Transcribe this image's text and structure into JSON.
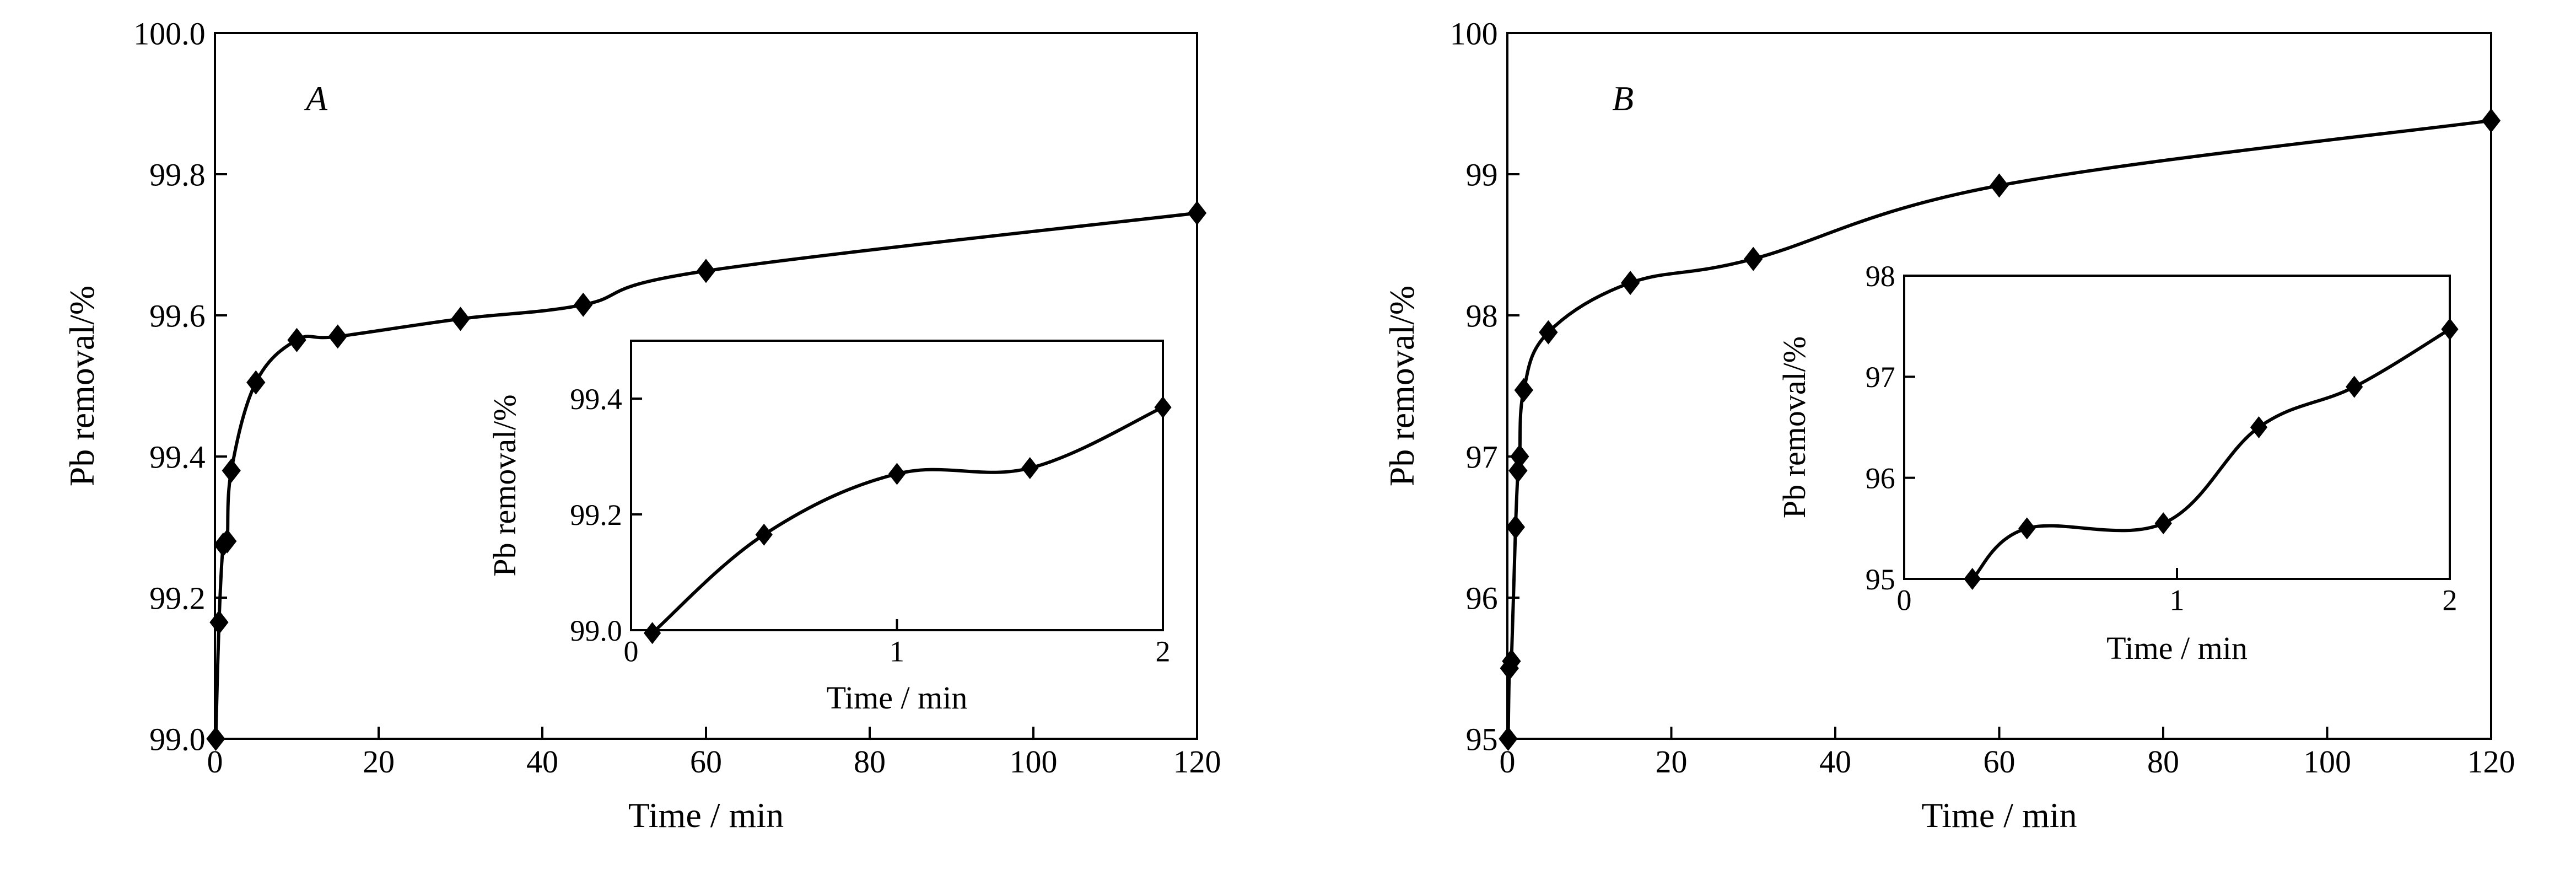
{
  "colors": {
    "line": "#000000",
    "marker": "#000000",
    "background": "#ffffff"
  },
  "chart_data": [
    {
      "panel_label": "A",
      "type": "line",
      "xlabel": "Time / min",
      "ylabel": "Pb removal/%",
      "xlim": [
        0,
        120
      ],
      "ylim": [
        99.0,
        100.0
      ],
      "xticks": [
        0,
        20,
        40,
        60,
        80,
        100,
        120
      ],
      "yticks": [
        99.0,
        99.2,
        99.4,
        99.6,
        99.8,
        100.0
      ],
      "xtick_labels": [
        "0",
        "20",
        "40",
        "60",
        "80",
        "100",
        "120"
      ],
      "ytick_labels": [
        "99.0",
        "99.2",
        "99.4",
        "99.6",
        "99.8",
        "100.0"
      ],
      "grid": false,
      "marker": "diamond",
      "series": [
        {
          "x": [
            0.1,
            0.5,
            1,
            1.5,
            2,
            5,
            10,
            15,
            30,
            45,
            60,
            120
          ],
          "y": [
            99.0,
            99.165,
            99.275,
            99.28,
            99.38,
            99.505,
            99.565,
            99.57,
            99.595,
            99.615,
            99.663,
            99.745
          ]
        }
      ]
    },
    {
      "inset_of": "A",
      "type": "line",
      "xlabel": "Time / min",
      "ylabel": "Pb removal/%",
      "xlim": [
        0,
        2
      ],
      "ylim": [
        99.0,
        99.5
      ],
      "xticks": [
        0,
        1,
        2
      ],
      "yticks": [
        99.0,
        99.2,
        99.4
      ],
      "xtick_labels": [
        "0",
        "1",
        "2"
      ],
      "ytick_labels": [
        "99.0",
        "99.2",
        "99.4"
      ],
      "grid": false,
      "marker": "diamond",
      "series": [
        {
          "x": [
            0.08,
            0.5,
            1.0,
            1.5,
            2.0
          ],
          "y": [
            98.995,
            99.165,
            99.27,
            99.28,
            99.385
          ]
        }
      ]
    },
    {
      "panel_label": "B",
      "type": "line",
      "xlabel": "Time / min",
      "ylabel": "Pb removal/%",
      "xlim": [
        0,
        120
      ],
      "ylim": [
        95,
        100
      ],
      "xticks": [
        0,
        20,
        40,
        60,
        80,
        100,
        120
      ],
      "yticks": [
        95,
        96,
        97,
        98,
        99,
        100
      ],
      "xtick_labels": [
        "0",
        "20",
        "40",
        "60",
        "80",
        "100",
        "120"
      ],
      "ytick_labels": [
        "95",
        "96",
        "97",
        "98",
        "99",
        "100"
      ],
      "grid": false,
      "marker": "diamond",
      "series": [
        {
          "x": [
            0.1,
            0.25,
            0.5,
            1.0,
            1.3,
            1.5,
            2.0,
            5,
            15,
            30,
            60,
            120
          ],
          "y": [
            95.0,
            95.5,
            95.55,
            96.5,
            96.9,
            97.0,
            97.47,
            97.88,
            98.23,
            98.4,
            98.92,
            99.38
          ]
        }
      ]
    },
    {
      "inset_of": "B",
      "type": "line",
      "xlabel": "Time / min",
      "ylabel": "Pb removal/%",
      "xlim": [
        0,
        2
      ],
      "ylim": [
        95,
        98
      ],
      "xticks": [
        0,
        1,
        2
      ],
      "yticks": [
        95,
        96,
        97,
        98
      ],
      "xtick_labels": [
        "0",
        "1",
        "2"
      ],
      "ytick_labels": [
        "95",
        "96",
        "97",
        "98"
      ],
      "grid": false,
      "marker": "diamond",
      "series": [
        {
          "x": [
            0.25,
            0.45,
            0.95,
            1.3,
            1.65,
            2.0
          ],
          "y": [
            95.0,
            95.5,
            95.55,
            96.5,
            96.9,
            97.47
          ]
        }
      ]
    }
  ]
}
